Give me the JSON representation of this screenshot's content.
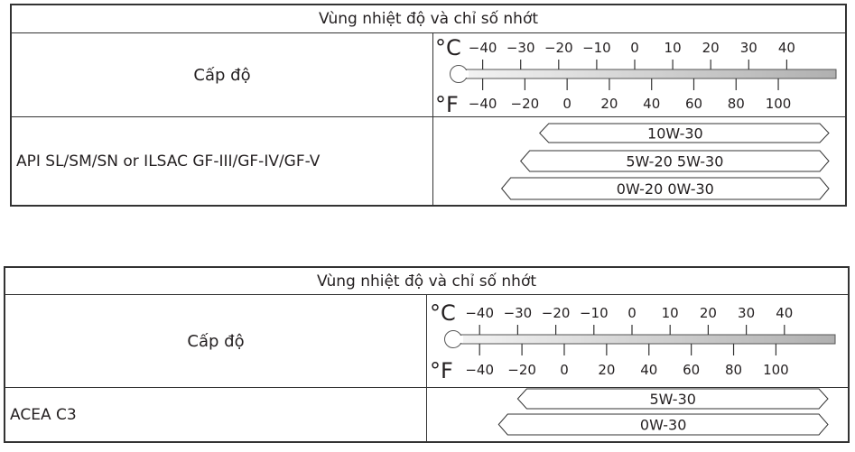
{
  "tables": [
    {
      "title": "Vùng nhiệt độ và chỉ số nhớt",
      "grade_label": "Cấp độ",
      "spec": "API  SL/SM/SN   or ILSAC   GF-III/GF-IV/GF-V",
      "unit_c": "°C",
      "unit_f": "°F",
      "celsius_ticks": [
        "−40",
        "−30",
        "−20",
        "−10",
        "0",
        "10",
        "20",
        "30",
        "40"
      ],
      "fahrenheit_ticks": [
        "−40",
        "−20",
        "0",
        "20",
        "40",
        "60",
        "80",
        "100"
      ],
      "oils": [
        {
          "label": "10W-30",
          "min_c": -25
        },
        {
          "label": "5W-20   5W-30",
          "min_c": -30
        },
        {
          "label": "0W-20   0W-30",
          "min_c": -35
        }
      ]
    },
    {
      "title": "Vùng nhiệt độ và chỉ số nhớt",
      "grade_label": "Cấp độ",
      "spec": "ACEA   C3",
      "unit_c": "°C",
      "unit_f": "°F",
      "celsius_ticks": [
        "−40",
        "−30",
        "−20",
        "−10",
        "0",
        "10",
        "20",
        "30",
        "40"
      ],
      "fahrenheit_ticks": [
        "−40",
        "−20",
        "0",
        "20",
        "40",
        "60",
        "80",
        "100"
      ],
      "oils": [
        {
          "label": "5W-30",
          "min_c": -30
        },
        {
          "label": "0W-30",
          "min_c": -35
        }
      ]
    }
  ]
}
